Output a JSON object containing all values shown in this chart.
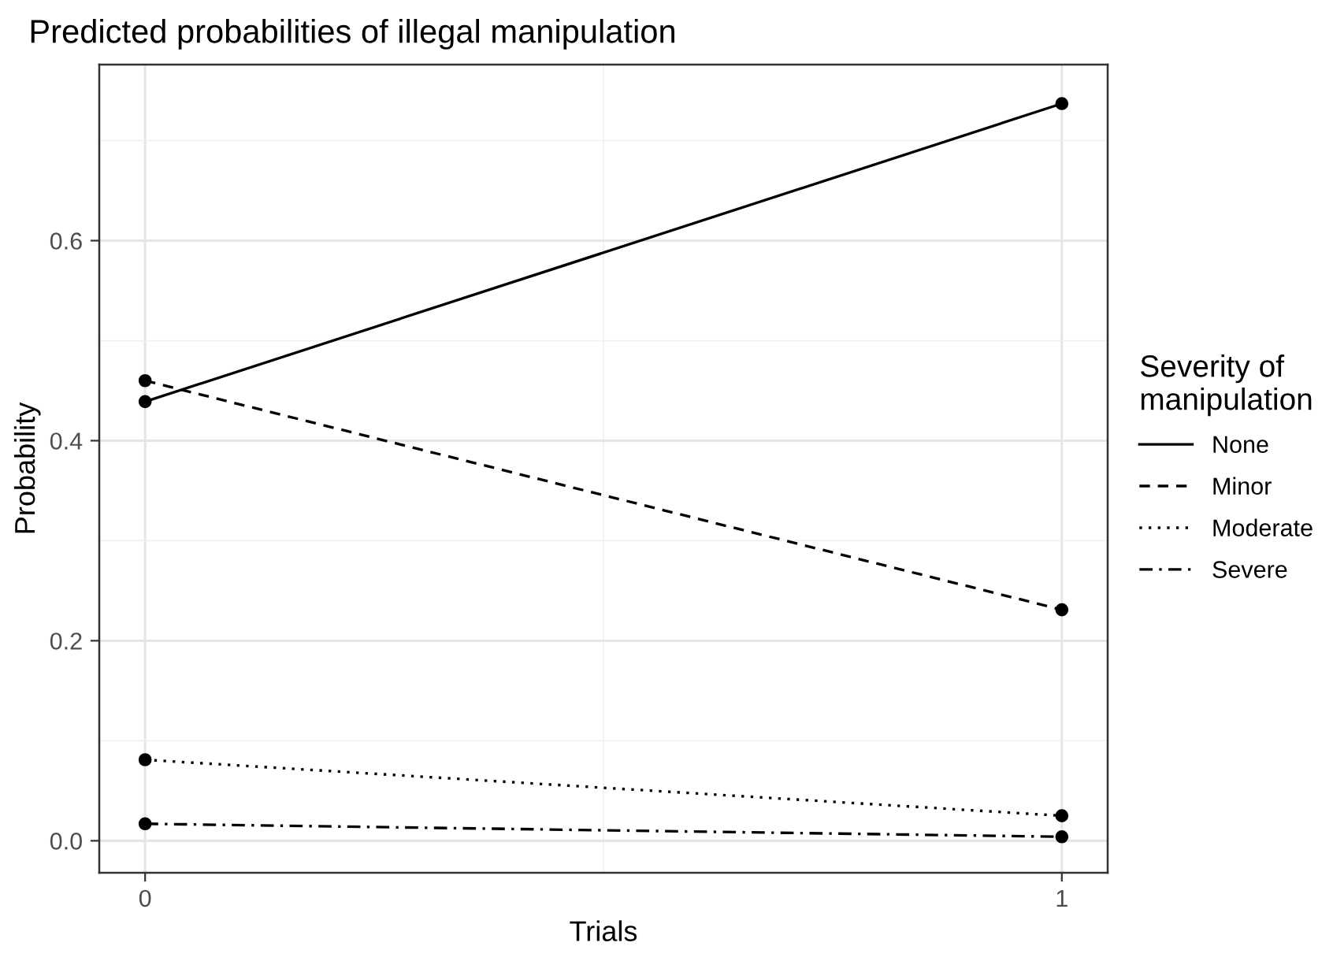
{
  "chart_data": {
    "type": "line",
    "title": "Predicted probabilities of illegal manipulation",
    "xlabel": "Trials",
    "ylabel": "Probability",
    "legend_title": "Severity of\nmanipulation",
    "x": [
      0,
      1
    ],
    "series": [
      {
        "name": "None",
        "color": "#000000",
        "line_style": "solid",
        "values": [
          0.439,
          0.737
        ]
      },
      {
        "name": "Minor",
        "color": "#000000",
        "line_style": "dashed",
        "values": [
          0.46,
          0.231
        ]
      },
      {
        "name": "Moderate",
        "color": "#000000",
        "line_style": "dotted",
        "values": [
          0.081,
          0.025
        ]
      },
      {
        "name": "Severe",
        "color": "#000000",
        "line_style": "dashdot",
        "values": [
          0.017,
          0.004
        ]
      }
    ],
    "xlim": [
      -0.05,
      1.05
    ],
    "xticks": [
      0,
      1
    ],
    "ylim": [
      -0.032,
      0.776
    ],
    "yticks": [
      {
        "value": 0,
        "label": "0.0"
      },
      0.2,
      0.4,
      0.6
    ],
    "marker": "circle",
    "grid": true,
    "legend": "right"
  }
}
